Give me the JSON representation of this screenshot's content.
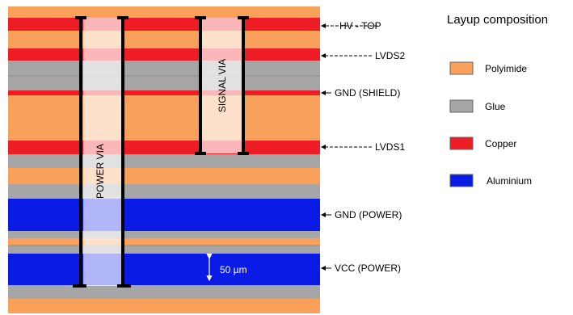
{
  "colors": {
    "polyimide": "#F9A15A",
    "glue": "#A6A6A6",
    "copper": "#EE1C24",
    "aluminium": "#0A1BE6"
  },
  "stack": [
    {
      "material": "polyimide"
    },
    {
      "material": "copper"
    },
    {
      "material": "polyimide"
    },
    {
      "material": "copper"
    },
    {
      "material": "glue"
    },
    {
      "material": "glue"
    },
    {
      "material": "copper"
    },
    {
      "material": "polyimide"
    },
    {
      "material": "copper"
    },
    {
      "material": "glue"
    },
    {
      "material": "polyimide"
    },
    {
      "material": "glue"
    },
    {
      "material": "aluminium"
    },
    {
      "material": "glue"
    },
    {
      "material": "polyimide"
    },
    {
      "material": "glue"
    },
    {
      "material": "aluminium"
    },
    {
      "material": "glue"
    },
    {
      "material": "polyimide"
    }
  ],
  "layer_labels": [
    "HV - TOP",
    "LVDS2",
    "GND (SHIELD)",
    "LVDS1",
    "GND (POWER)",
    "VCC (POWER)"
  ],
  "vias": {
    "power": "POWER VIA",
    "signal": "SIGNAL VIA"
  },
  "dimension": "50 µm",
  "legend": {
    "title": "Layup composition",
    "items": [
      {
        "label": "Polyimide",
        "material": "polyimide"
      },
      {
        "label": "Glue",
        "material": "glue"
      },
      {
        "label": "Copper",
        "material": "copper"
      },
      {
        "label": "Aluminium",
        "material": "aluminium"
      }
    ]
  }
}
